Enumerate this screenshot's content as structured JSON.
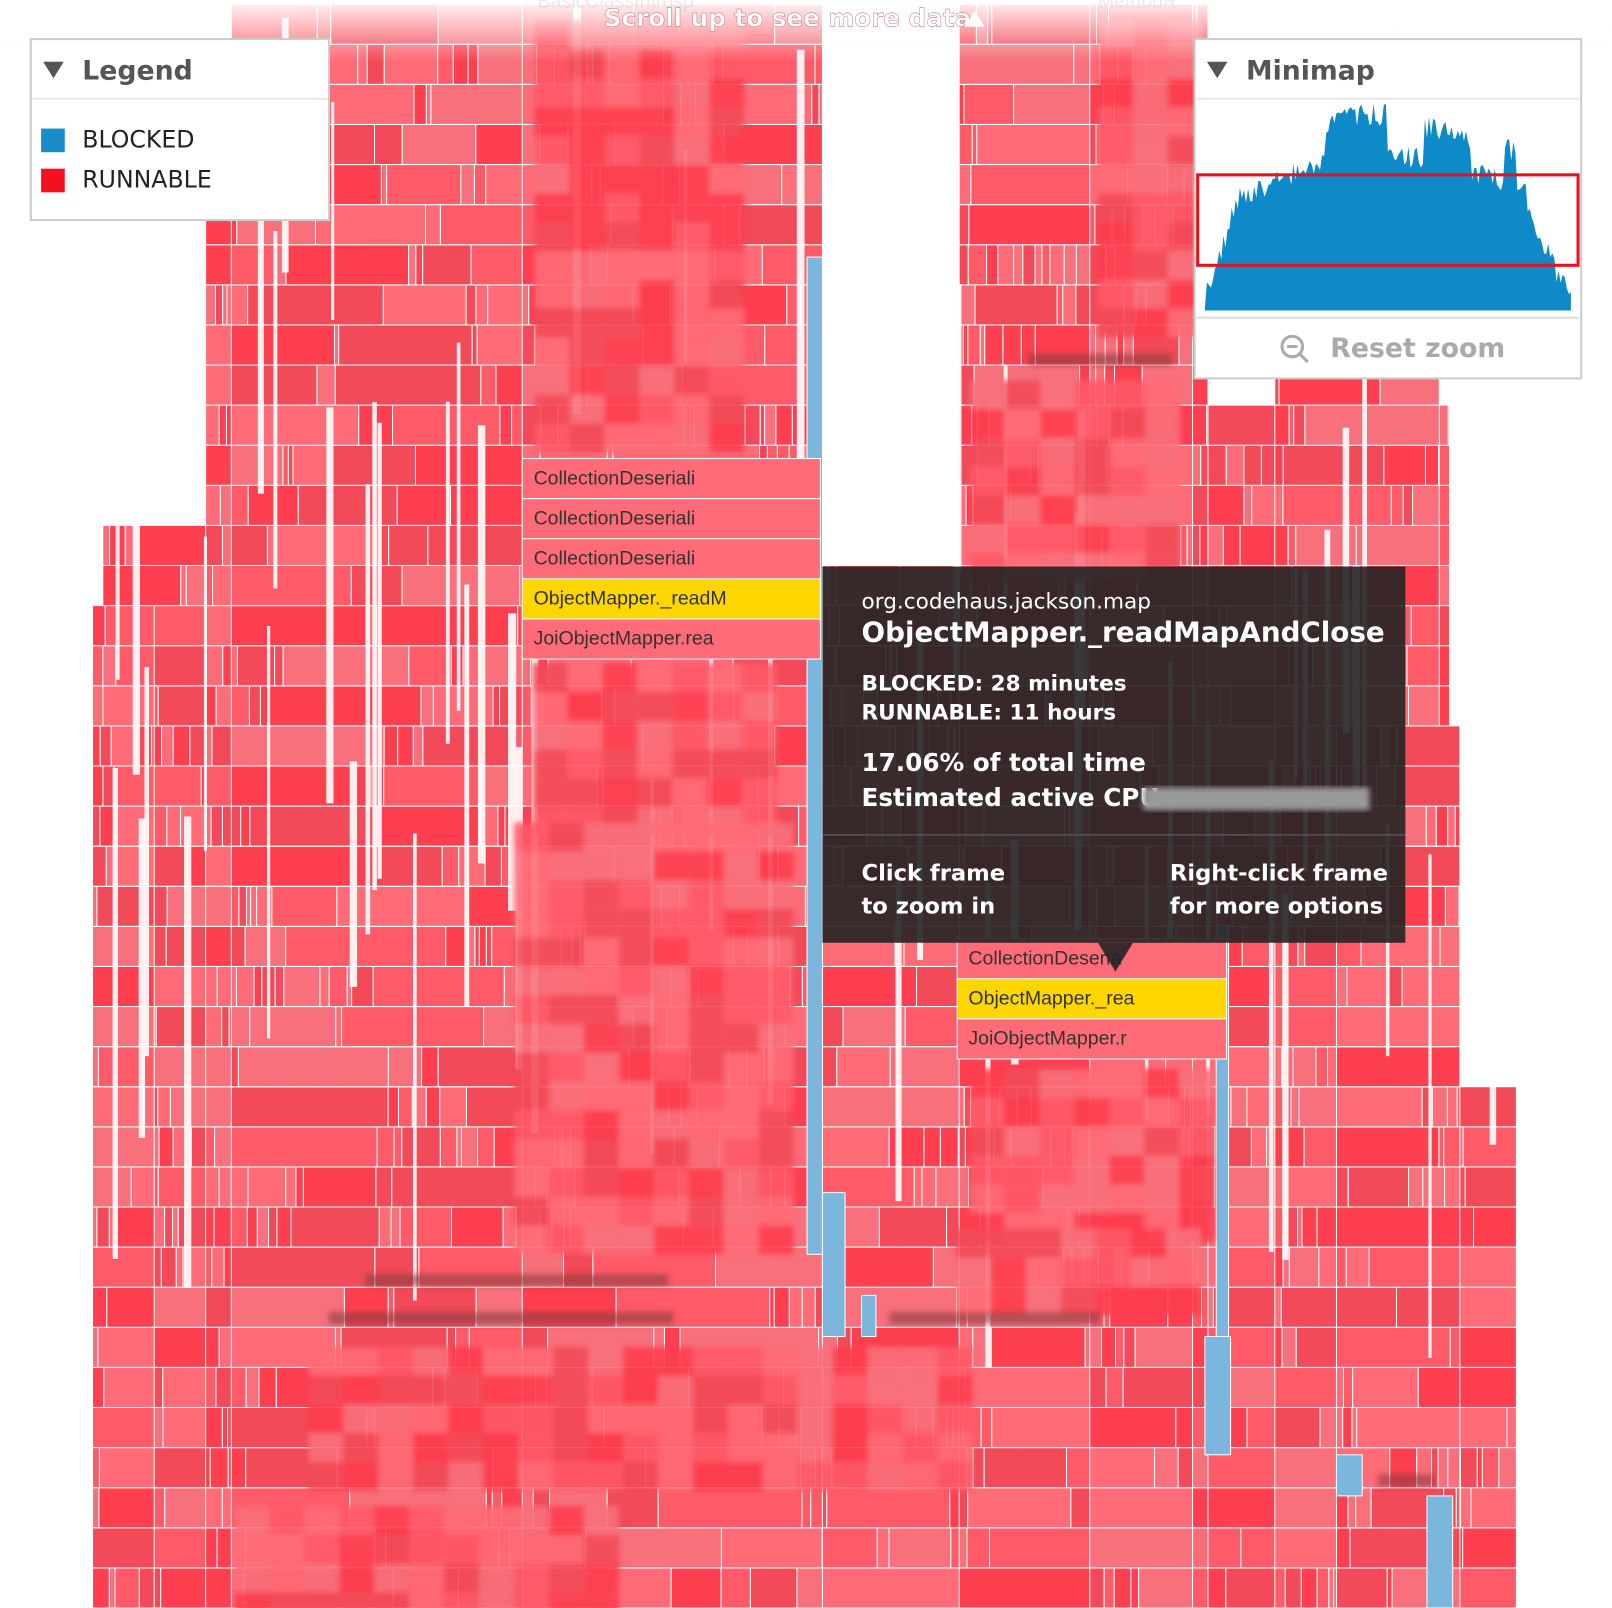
{
  "scroll_hint": "Scroll up to see more data",
  "top_frames": [
    "BasicClassIntrosp",
    "MethodR"
  ],
  "legend": {
    "title": "Legend",
    "items": [
      {
        "label": "BLOCKED",
        "color": "#1a8cc8"
      },
      {
        "label": "RUNNABLE",
        "color": "#f5101f"
      }
    ]
  },
  "minimap": {
    "title": "Minimap",
    "reset": "Reset zoom"
  },
  "frames_left": [
    "CollectionDeseriali",
    "CollectionDeseriali",
    "CollectionDeseriali",
    "ObjectMapper._readM",
    "JoiObjectMapper.rea"
  ],
  "frames_right": [
    "CollectionDeseria",
    "ObjectMapper._rea",
    "JoiObjectMapper.r"
  ],
  "tooltip": {
    "package": "org.codehaus.jackson.map",
    "method": "ObjectMapper._readMapAndClose",
    "blocked": "BLOCKED: 28 minutes",
    "runnable": "RUNNABLE: 11 hours",
    "share": "17.06% of total time",
    "cpu": "Estimated active CPU",
    "hint_left": [
      "Click frame",
      "to zoom in"
    ],
    "hint_right": [
      "Right-click frame",
      "for more options"
    ]
  }
}
